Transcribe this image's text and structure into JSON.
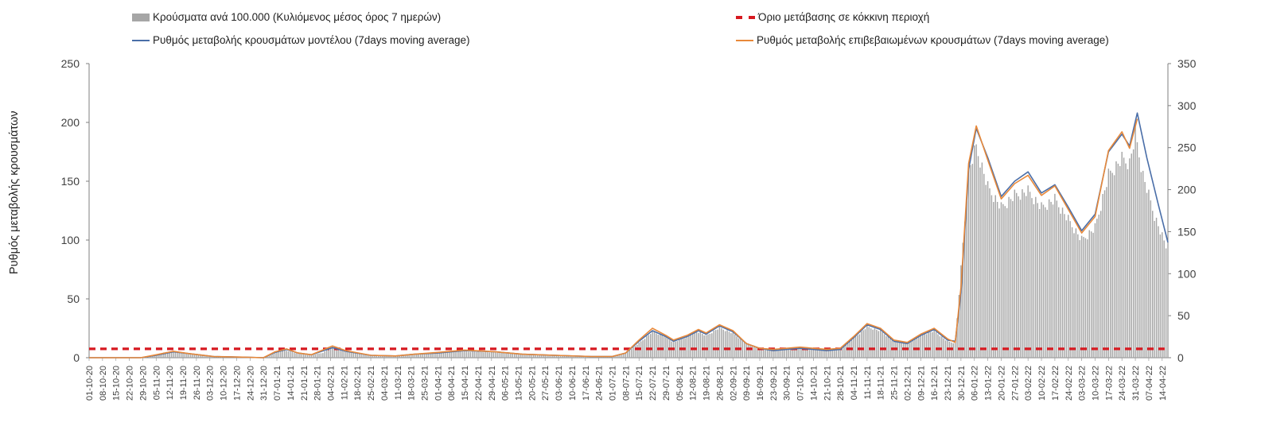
{
  "chart_data": {
    "type": "bar+line",
    "ylabel": "Ρυθμός μεταβολής κρουσμάτων",
    "ylim": [
      0,
      250
    ],
    "y2lim": [
      0,
      350
    ],
    "yticks": [
      "0",
      "50",
      "100",
      "150",
      "200",
      "250"
    ],
    "y2ticks": [
      "0",
      "50",
      "100",
      "150",
      "200",
      "250",
      "300",
      "350"
    ],
    "x_start_date": "2020-10-01",
    "x_end_date": "2022-04-17",
    "x_tick_labels": [
      "01-10-20",
      "08-10-20",
      "15-10-20",
      "22-10-20",
      "29-10-20",
      "05-11-20",
      "12-11-20",
      "19-11-20",
      "26-11-20",
      "03-12-20",
      "10-12-20",
      "17-12-20",
      "24-12-20",
      "31-12-20",
      "07-01-21",
      "14-01-21",
      "21-01-21",
      "28-01-21",
      "04-02-21",
      "11-02-21",
      "18-02-21",
      "25-02-21",
      "04-03-21",
      "11-03-21",
      "18-03-21",
      "25-03-21",
      "01-04-21",
      "08-04-21",
      "15-04-21",
      "22-04-21",
      "29-04-21",
      "06-05-21",
      "13-05-21",
      "20-05-21",
      "27-05-21",
      "03-06-21",
      "10-06-21",
      "17-06-21",
      "24-06-21",
      "01-07-21",
      "08-07-21",
      "15-07-21",
      "22-07-21",
      "29-07-21",
      "05-08-21",
      "12-08-21",
      "19-08-21",
      "26-08-21",
      "02-09-21",
      "09-09-21",
      "16-09-21",
      "23-09-21",
      "30-09-21",
      "07-10-21",
      "14-10-21",
      "21-10-21",
      "28-10-21",
      "04-11-21",
      "11-11-21",
      "18-11-21",
      "25-11-21",
      "02-12-21",
      "09-12-21",
      "16-12-21",
      "23-12-21",
      "30-12-21",
      "06-01-22",
      "13-01-22",
      "20-01-22",
      "27-01-22",
      "03-02-22",
      "10-02-22",
      "17-02-22",
      "24-02-22",
      "03-03-22",
      "10-03-22",
      "17-03-22",
      "24-03-22",
      "31-03-22",
      "07-04-22",
      "14-04-22"
    ],
    "threshold_value": 7.5,
    "series": [
      {
        "name": "Κρούσματα ανά 100.000 (Κυλιόμενος μέσος όρος 7 ημερών)",
        "type": "bar",
        "axis": "right",
        "color": "#a6a6a6",
        "points": [
          [
            "2020-10-01",
            0
          ],
          [
            "2020-10-28",
            0
          ],
          [
            "2020-11-02",
            2
          ],
          [
            "2020-11-08",
            6
          ],
          [
            "2020-11-14",
            8
          ],
          [
            "2020-11-20",
            6
          ],
          [
            "2020-11-28",
            3
          ],
          [
            "2020-12-05",
            2
          ],
          [
            "2020-12-12",
            2
          ],
          [
            "2020-12-20",
            1
          ],
          [
            "2020-12-31",
            0
          ],
          [
            "2021-01-06",
            6
          ],
          [
            "2021-01-10",
            10
          ],
          [
            "2021-01-16",
            6
          ],
          [
            "2021-01-24",
            3
          ],
          [
            "2021-01-31",
            6
          ],
          [
            "2021-02-05",
            14
          ],
          [
            "2021-02-12",
            8
          ],
          [
            "2021-02-20",
            4
          ],
          [
            "2021-03-01",
            3
          ],
          [
            "2021-03-10",
            2
          ],
          [
            "2021-03-20",
            4
          ],
          [
            "2021-04-01",
            6
          ],
          [
            "2021-04-12",
            8
          ],
          [
            "2021-04-24",
            7
          ],
          [
            "2021-05-06",
            6
          ],
          [
            "2021-05-18",
            4
          ],
          [
            "2021-06-01",
            3
          ],
          [
            "2021-06-15",
            1
          ],
          [
            "2021-06-30",
            1
          ],
          [
            "2021-07-08",
            6
          ],
          [
            "2021-07-15",
            18
          ],
          [
            "2021-07-22",
            32
          ],
          [
            "2021-07-29",
            26
          ],
          [
            "2021-08-02",
            19
          ],
          [
            "2021-08-09",
            26
          ],
          [
            "2021-08-14",
            33
          ],
          [
            "2021-08-19",
            27
          ],
          [
            "2021-08-26",
            37
          ],
          [
            "2021-09-02",
            30
          ],
          [
            "2021-09-09",
            18
          ],
          [
            "2021-09-16",
            12
          ],
          [
            "2021-09-23",
            10
          ],
          [
            "2021-09-30",
            11
          ],
          [
            "2021-10-07",
            12
          ],
          [
            "2021-10-14",
            11
          ],
          [
            "2021-10-21",
            10
          ],
          [
            "2021-10-28",
            11
          ],
          [
            "2021-11-04",
            24
          ],
          [
            "2021-11-11",
            38
          ],
          [
            "2021-11-18",
            33
          ],
          [
            "2021-11-25",
            20
          ],
          [
            "2021-12-02",
            18
          ],
          [
            "2021-12-09",
            28
          ],
          [
            "2021-12-16",
            33
          ],
          [
            "2021-12-23",
            20
          ],
          [
            "2021-12-27",
            18
          ],
          [
            "2021-12-30",
            110
          ],
          [
            "2022-01-03",
            230
          ],
          [
            "2022-01-07",
            260
          ],
          [
            "2022-01-13",
            210
          ],
          [
            "2022-01-20",
            185
          ],
          [
            "2022-01-27",
            200
          ],
          [
            "2022-02-03",
            205
          ],
          [
            "2022-02-10",
            185
          ],
          [
            "2022-02-17",
            195
          ],
          [
            "2022-02-24",
            170
          ],
          [
            "2022-03-03",
            145
          ],
          [
            "2022-03-10",
            160
          ],
          [
            "2022-03-17",
            225
          ],
          [
            "2022-03-24",
            245
          ],
          [
            "2022-03-28",
            240
          ],
          [
            "2022-03-31",
            275
          ],
          [
            "2022-04-04",
            225
          ],
          [
            "2022-04-10",
            175
          ],
          [
            "2022-04-17",
            130
          ]
        ]
      },
      {
        "name": "Όριο μετάβασης σε κόκκινη περιοχή",
        "type": "threshold",
        "axis": "left",
        "color": "#d71920"
      },
      {
        "name": "Ρυθμός μεταβολής κρουσμάτων μοντέλου (7days moving average)",
        "type": "line",
        "axis": "left",
        "color": "#4a6ea8",
        "points": [
          [
            "2020-10-01",
            0
          ],
          [
            "2020-10-28",
            0
          ],
          [
            "2020-11-05",
            2
          ],
          [
            "2020-11-14",
            5
          ],
          [
            "2020-11-22",
            3.5
          ],
          [
            "2020-12-05",
            1
          ],
          [
            "2020-12-20",
            0.5
          ],
          [
            "2020-12-31",
            0
          ],
          [
            "2021-01-06",
            4.5
          ],
          [
            "2021-01-12",
            7
          ],
          [
            "2021-01-18",
            4
          ],
          [
            "2021-01-25",
            2.5
          ],
          [
            "2021-02-05",
            8.5
          ],
          [
            "2021-02-12",
            5.5
          ],
          [
            "2021-02-25",
            2
          ],
          [
            "2021-03-10",
            1.5
          ],
          [
            "2021-03-20",
            3
          ],
          [
            "2021-04-01",
            4
          ],
          [
            "2021-04-15",
            6
          ],
          [
            "2021-05-01",
            5
          ],
          [
            "2021-05-15",
            3
          ],
          [
            "2021-06-01",
            2
          ],
          [
            "2021-06-20",
            1
          ],
          [
            "2021-07-01",
            1
          ],
          [
            "2021-07-08",
            4
          ],
          [
            "2021-07-15",
            14
          ],
          [
            "2021-07-22",
            23
          ],
          [
            "2021-07-29",
            18
          ],
          [
            "2021-08-02",
            14
          ],
          [
            "2021-08-09",
            18
          ],
          [
            "2021-08-15",
            23
          ],
          [
            "2021-08-19",
            20
          ],
          [
            "2021-08-26",
            27
          ],
          [
            "2021-09-02",
            22
          ],
          [
            "2021-09-09",
            12
          ],
          [
            "2021-09-16",
            8
          ],
          [
            "2021-09-23",
            6
          ],
          [
            "2021-09-30",
            7
          ],
          [
            "2021-10-07",
            8
          ],
          [
            "2021-10-14",
            7
          ],
          [
            "2021-10-21",
            6
          ],
          [
            "2021-10-28",
            7
          ],
          [
            "2021-11-04",
            17
          ],
          [
            "2021-11-11",
            28
          ],
          [
            "2021-11-18",
            24
          ],
          [
            "2021-11-25",
            14
          ],
          [
            "2021-12-02",
            12
          ],
          [
            "2021-12-09",
            19
          ],
          [
            "2021-12-16",
            24
          ],
          [
            "2021-12-23",
            15
          ],
          [
            "2021-12-27",
            14
          ],
          [
            "2021-12-30",
            55
          ],
          [
            "2022-01-03",
            160
          ],
          [
            "2022-01-07",
            195
          ],
          [
            "2022-01-13",
            170
          ],
          [
            "2022-01-20",
            137
          ],
          [
            "2022-01-27",
            150
          ],
          [
            "2022-02-03",
            158
          ],
          [
            "2022-02-10",
            140
          ],
          [
            "2022-02-17",
            147
          ],
          [
            "2022-02-24",
            128
          ],
          [
            "2022-03-03",
            108
          ],
          [
            "2022-03-10",
            122
          ],
          [
            "2022-03-17",
            175
          ],
          [
            "2022-03-24",
            190
          ],
          [
            "2022-03-28",
            180
          ],
          [
            "2022-04-01",
            208
          ],
          [
            "2022-04-06",
            170
          ],
          [
            "2022-04-12",
            130
          ],
          [
            "2022-04-17",
            98
          ]
        ]
      },
      {
        "name": "Ρυθμός μεταβολής επιβεβαιωμένων κρουσμάτων (7days moving average)",
        "type": "line",
        "axis": "left",
        "color": "#e8893a",
        "points": [
          [
            "2020-10-01",
            0
          ],
          [
            "2020-10-28",
            0
          ],
          [
            "2020-11-05",
            2.5
          ],
          [
            "2020-11-14",
            5.5
          ],
          [
            "2020-11-22",
            3.5
          ],
          [
            "2020-12-05",
            1
          ],
          [
            "2020-12-20",
            0.5
          ],
          [
            "2020-12-31",
            0
          ],
          [
            "2021-01-06",
            5
          ],
          [
            "2021-01-12",
            7.5
          ],
          [
            "2021-01-18",
            4
          ],
          [
            "2021-01-25",
            2.5
          ],
          [
            "2021-02-05",
            10
          ],
          [
            "2021-02-12",
            6
          ],
          [
            "2021-02-25",
            2
          ],
          [
            "2021-03-10",
            1.5
          ],
          [
            "2021-03-20",
            3
          ],
          [
            "2021-04-01",
            4.5
          ],
          [
            "2021-04-15",
            6.5
          ],
          [
            "2021-05-01",
            5
          ],
          [
            "2021-05-15",
            3
          ],
          [
            "2021-06-01",
            2
          ],
          [
            "2021-06-20",
            1
          ],
          [
            "2021-07-01",
            1
          ],
          [
            "2021-07-08",
            4
          ],
          [
            "2021-07-15",
            15
          ],
          [
            "2021-07-22",
            25
          ],
          [
            "2021-07-29",
            19
          ],
          [
            "2021-08-02",
            15
          ],
          [
            "2021-08-09",
            19
          ],
          [
            "2021-08-15",
            24
          ],
          [
            "2021-08-19",
            21
          ],
          [
            "2021-08-26",
            28
          ],
          [
            "2021-09-02",
            23
          ],
          [
            "2021-09-09",
            12
          ],
          [
            "2021-09-16",
            8
          ],
          [
            "2021-09-23",
            7
          ],
          [
            "2021-09-30",
            8
          ],
          [
            "2021-10-07",
            9
          ],
          [
            "2021-10-14",
            8
          ],
          [
            "2021-10-21",
            7
          ],
          [
            "2021-10-28",
            8
          ],
          [
            "2021-11-04",
            18
          ],
          [
            "2021-11-11",
            29
          ],
          [
            "2021-11-18",
            25
          ],
          [
            "2021-11-25",
            15
          ],
          [
            "2021-12-02",
            13
          ],
          [
            "2021-12-09",
            20
          ],
          [
            "2021-12-16",
            25
          ],
          [
            "2021-12-23",
            16
          ],
          [
            "2021-12-27",
            13
          ],
          [
            "2021-12-30",
            60
          ],
          [
            "2022-01-03",
            165
          ],
          [
            "2022-01-07",
            197
          ],
          [
            "2022-01-13",
            168
          ],
          [
            "2022-01-20",
            135
          ],
          [
            "2022-01-27",
            148
          ],
          [
            "2022-02-03",
            155
          ],
          [
            "2022-02-10",
            138
          ],
          [
            "2022-02-17",
            146
          ],
          [
            "2022-02-24",
            126
          ],
          [
            "2022-03-03",
            106
          ],
          [
            "2022-03-10",
            120
          ],
          [
            "2022-03-17",
            176
          ],
          [
            "2022-03-24",
            192
          ],
          [
            "2022-03-28",
            178
          ],
          [
            "2022-04-01",
            203
          ]
        ]
      }
    ]
  }
}
